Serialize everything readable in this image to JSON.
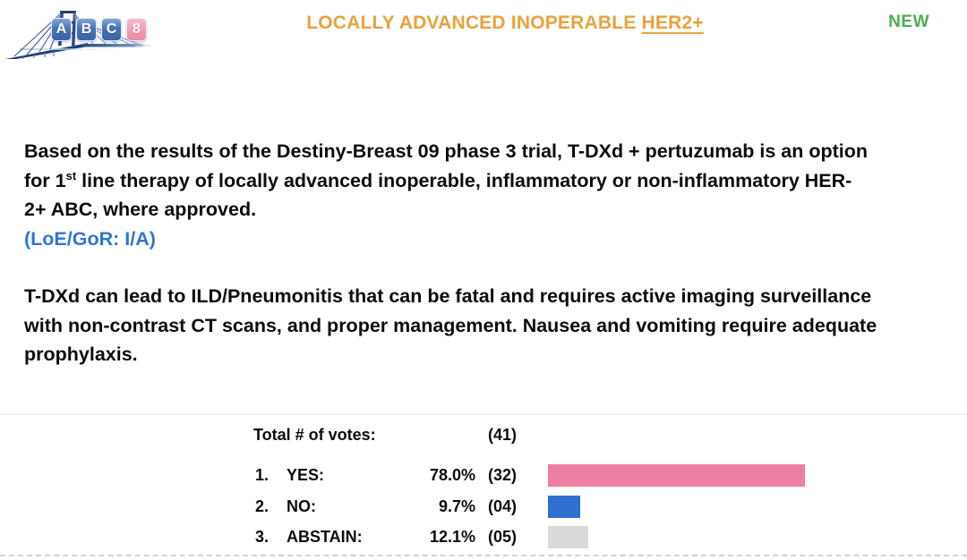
{
  "header": {
    "logo": {
      "letters": [
        "A",
        "B",
        "C",
        "8"
      ],
      "tile_blue": "#4470b4",
      "tile_pink": "#ef9cb4",
      "bridge_navy": "#1e3f78"
    },
    "title_main": "LOCALLY ADVANCED INOPERABLE ",
    "title_underlined": "HER2+",
    "title_color": "#e9a23c",
    "badge": "NEW",
    "badge_color": "#4bae52"
  },
  "statement": {
    "line1": "Based on the results of the Destiny-Breast 09 phase 3 trial, T-DXd + pertuzumab is an option",
    "line2_pre": "for 1",
    "line2_sup": "st",
    "line2_post": " line therapy of locally advanced inoperable, inflammatory or non-inflammatory HER-",
    "line3": "2+ ABC, where approved.",
    "loe_note": "(LoE/GoR: I/A)",
    "loe_color": "#2e75d2"
  },
  "safety": {
    "line1": "T-DXd can lead to ILD/Pneumonitis that can be fatal and requires active imaging surveillance",
    "line2": "with non-contrast CT scans, and proper management. Nausea and vomiting require adequate",
    "line3": "prophylaxis."
  },
  "votes": {
    "total_label": "Total # of votes:",
    "total_count": "(41)",
    "rows": [
      {
        "num": "1.",
        "label": "YES:",
        "pct": "78.0%",
        "pct_value": 78.0,
        "count": "(32)",
        "count_value": 32,
        "bar_color": "#ee7fa4"
      },
      {
        "num": "2.",
        "label": "NO:",
        "pct": "9.7%",
        "pct_value": 9.7,
        "count": "(04)",
        "count_value": 4,
        "bar_color": "#2e6fd0"
      },
      {
        "num": "3.",
        "label": "ABSTAIN:",
        "pct": "12.1%",
        "pct_value": 12.1,
        "count": "(05)",
        "count_value": 5,
        "bar_color": "#d9d9d9"
      }
    ]
  },
  "chart_data": {
    "type": "bar",
    "orientation": "horizontal",
    "title": "Total # of votes: (41)",
    "categories": [
      "YES",
      "NO",
      "ABSTAIN"
    ],
    "values": [
      78.0,
      9.7,
      12.1
    ],
    "counts": [
      32,
      4,
      5
    ],
    "total_votes": 41,
    "unit": "%",
    "colors": [
      "#ee7fa4",
      "#2e6fd0",
      "#d9d9d9"
    ],
    "xlim": [
      0,
      100
    ],
    "grid": false,
    "legend": false
  }
}
